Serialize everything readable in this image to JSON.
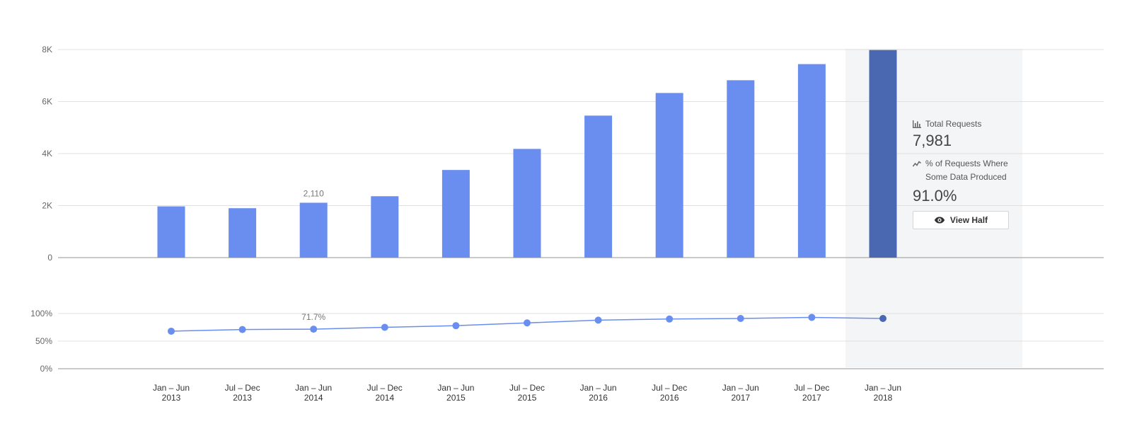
{
  "chart_data": [
    {
      "type": "bar",
      "categories": [
        "Jan – Jun|2013",
        "Jul – Dec|2013",
        "Jan – Jun|2014",
        "Jul – Dec|2014",
        "Jan – Jun|2015",
        "Jul – Dec|2015",
        "Jan – Jun|2016",
        "Jul – Dec|2016",
        "Jan – Jun|2017",
        "Jul – Dec|2017",
        "Jan – Jun|2018"
      ],
      "values": [
        1970,
        1900,
        2110,
        2360,
        3370,
        4180,
        5460,
        6330,
        6820,
        7440,
        7981
      ],
      "yticks": [
        "0",
        "2K",
        "4K",
        "6K",
        "8K"
      ],
      "ylim": [
        0,
        8000
      ],
      "labeled_point": {
        "index": 2,
        "label": "2,110"
      },
      "highlighted_index": 10,
      "grid": true
    },
    {
      "type": "line",
      "categories": [
        "Jan – Jun|2013",
        "Jul – Dec|2013",
        "Jan – Jun|2014",
        "Jul – Dec|2014",
        "Jan – Jun|2015",
        "Jul – Dec|2015",
        "Jan – Jun|2016",
        "Jul – Dec|2016",
        "Jan – Jun|2017",
        "Jul – Dec|2017",
        "Jan – Jun|2018"
      ],
      "values": [
        68,
        71,
        71.7,
        75,
        78,
        83,
        88,
        90,
        91,
        93,
        91
      ],
      "yticks": [
        "0%",
        "50%",
        "100%"
      ],
      "ylim": [
        0,
        100
      ],
      "labeled_point": {
        "index": 2,
        "label": "71.7%"
      },
      "highlighted_index": 10,
      "grid": true
    }
  ],
  "tooltip": {
    "total_label": "Total Requests",
    "total_value": "7,981",
    "pct_label": "% of Requests Where Some Data Produced",
    "pct_value": "91.0%",
    "button_label": "View Half",
    "bar_icon": "bar-chart-icon",
    "line_icon": "line-chart-icon",
    "button_icon": "eye-icon"
  },
  "colors": {
    "bar": "#6a8ef0",
    "bar_highlight": "#4a67b2",
    "line": "#6a8ef0",
    "grid": "#e0e0e0",
    "axis": "#aaaaaa",
    "highlight_bg": "#f4f5f6"
  }
}
